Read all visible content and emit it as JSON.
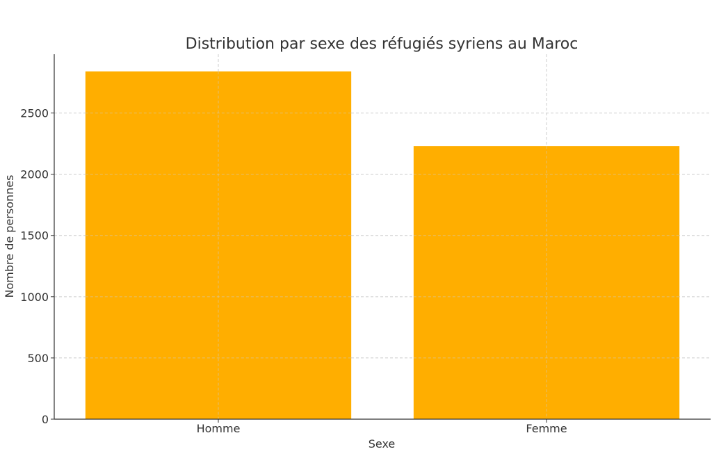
{
  "chart_data": {
    "type": "bar",
    "title": "Distribution par sexe des réfugiés syriens au Maroc",
    "xlabel": "Sexe",
    "ylabel": "Nombre de personnes",
    "categories": [
      "Homme",
      "Femme"
    ],
    "values": [
      2840,
      2230
    ],
    "ylim": [
      0,
      2980
    ],
    "yticks": [
      0,
      500,
      1000,
      1500,
      2000,
      2500
    ],
    "bar_color": "#FFAE00",
    "grid": true,
    "legend": "none"
  }
}
